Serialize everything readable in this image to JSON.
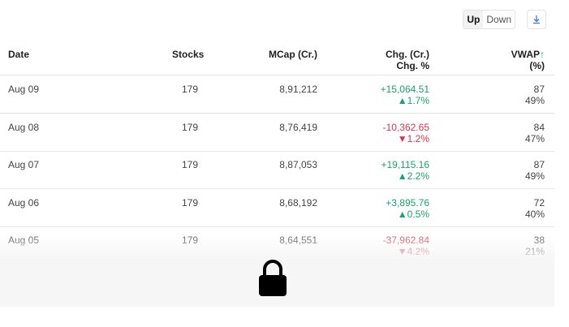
{
  "toolbar": {
    "toggle_up": "Up",
    "toggle_down": "Down",
    "download_icon": "download-icon"
  },
  "columns": {
    "date": "Date",
    "stocks": "Stocks",
    "mcap": "MCap (Cr.)",
    "chg_line1": "Chg. (Cr.)",
    "chg_line2": "Chg. %",
    "vwap_line1": "VWAP",
    "vwap_arrow": "↑",
    "vwap_line2": "(%)"
  },
  "rows": [
    {
      "date": "Aug 09",
      "stocks": "179",
      "mcap": "8,91,212",
      "chg": "+15,064.51",
      "chg_pct": "▲1.7%",
      "vwap_count": "87",
      "vwap_pct": "49%",
      "direction": "up"
    },
    {
      "date": "Aug 08",
      "stocks": "179",
      "mcap": "8,76,419",
      "chg": "-10,362.65",
      "chg_pct": "▼1.2%",
      "vwap_count": "84",
      "vwap_pct": "47%",
      "direction": "down"
    },
    {
      "date": "Aug 07",
      "stocks": "179",
      "mcap": "8,87,053",
      "chg": "+19,115.16",
      "chg_pct": "▲2.2%",
      "vwap_count": "87",
      "vwap_pct": "49%",
      "direction": "up"
    },
    {
      "date": "Aug 06",
      "stocks": "179",
      "mcap": "8,68,192",
      "chg": "+3,895.76",
      "chg_pct": "▲0.5%",
      "vwap_count": "72",
      "vwap_pct": "40%",
      "direction": "up"
    },
    {
      "date": "Aug 05",
      "stocks": "179",
      "mcap": "8,64,551",
      "chg": "-37,962.84",
      "chg_pct": "▼4.2%",
      "vwap_count": "38",
      "vwap_pct": "21%",
      "direction": "down"
    }
  ],
  "colors": {
    "positive": "#1aa36a",
    "negative": "#e0334b"
  },
  "overlay": {
    "icon": "lock-icon"
  }
}
